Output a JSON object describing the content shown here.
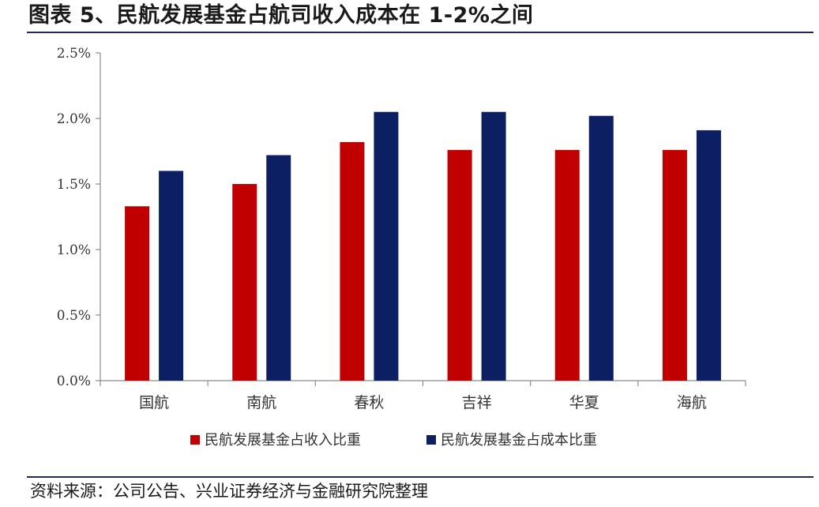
{
  "figure": {
    "title": "图表 5、民航发展基金占航司收入成本在 1-2%之间",
    "source": "资料来源：公司公告、兴业证券经济与金融研究院整理"
  },
  "chart_data": {
    "type": "bar",
    "categories": [
      "国航",
      "南航",
      "春秋",
      "吉祥",
      "华夏",
      "海航"
    ],
    "series": [
      {
        "name": "民航发展基金占收入比重",
        "color": "#C00000",
        "values": [
          1.33,
          1.5,
          1.82,
          1.76,
          1.76,
          1.76
        ]
      },
      {
        "name": "民航发展基金占成本比重",
        "color": "#0D1F63",
        "values": [
          1.6,
          1.72,
          2.05,
          2.05,
          2.02,
          1.91
        ]
      }
    ],
    "ylim": [
      0,
      2.5
    ],
    "yticks": [
      "0.0%",
      "0.5%",
      "1.0%",
      "1.5%",
      "2.0%",
      "2.5%"
    ],
    "grid": false,
    "legend_position": "bottom",
    "title": "",
    "xlabel": "",
    "ylabel": ""
  }
}
